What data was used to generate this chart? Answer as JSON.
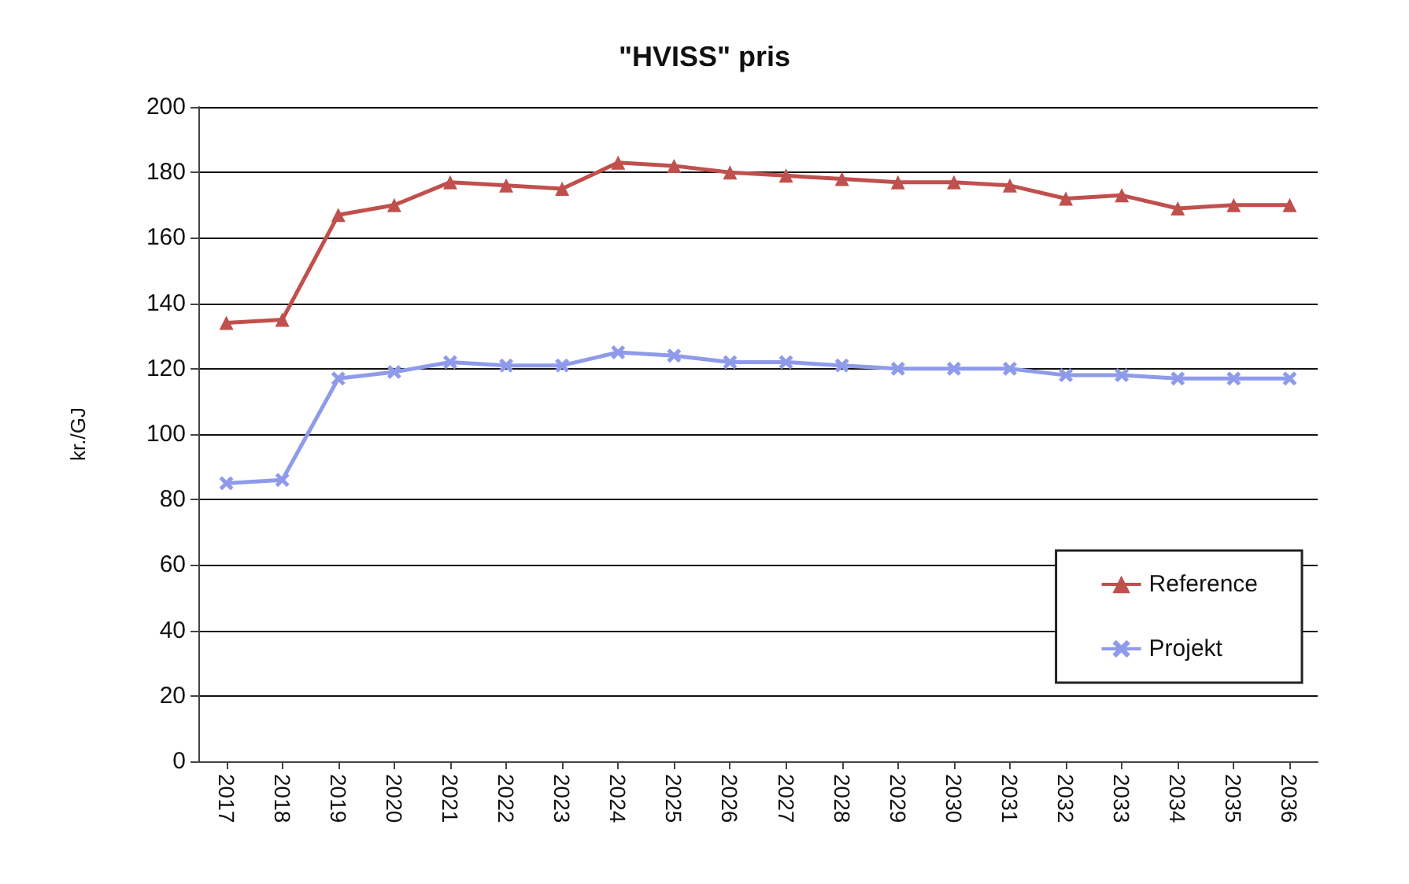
{
  "chart_data": {
    "type": "line",
    "title": "\"HVISS\" pris",
    "ylabel": "kr./GJ",
    "categories": [
      "2017",
      "2018",
      "2019",
      "2020",
      "2021",
      "2022",
      "2023",
      "2024",
      "2025",
      "2026",
      "2027",
      "2028",
      "2029",
      "2030",
      "2031",
      "2032",
      "2033",
      "2034",
      "2035",
      "2036"
    ],
    "series": [
      {
        "name": "Reference",
        "color": "#c0504d",
        "marker": "triangle",
        "values": [
          134,
          135,
          167,
          170,
          177,
          176,
          175,
          183,
          182,
          180,
          179,
          178,
          177,
          177,
          176,
          172,
          173,
          169,
          170,
          170
        ]
      },
      {
        "name": "Projekt",
        "color": "#8f9bea",
        "marker": "cross",
        "values": [
          85,
          86,
          117,
          119,
          122,
          121,
          121,
          125,
          124,
          122,
          122,
          121,
          120,
          120,
          120,
          118,
          118,
          117,
          117,
          117
        ]
      }
    ],
    "ylim": [
      0,
      200
    ],
    "yticks": [
      0,
      20,
      40,
      60,
      80,
      100,
      120,
      140,
      160,
      180,
      200
    ],
    "grid": "y",
    "legend": "bottom right",
    "line_style": "solid"
  }
}
